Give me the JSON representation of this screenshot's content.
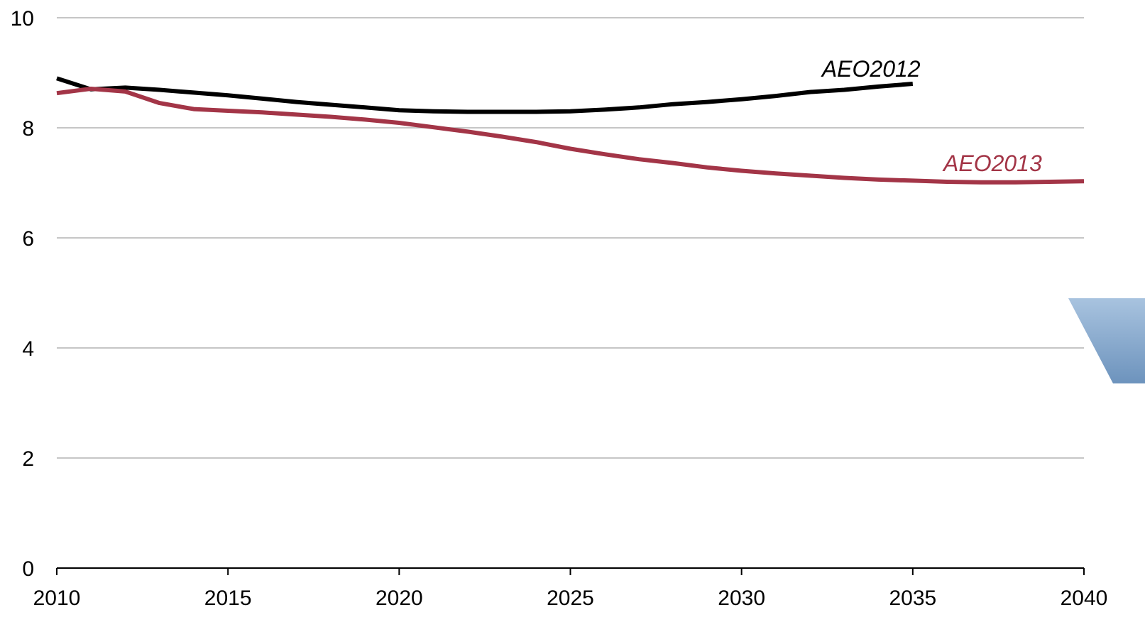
{
  "chart_data": {
    "type": "line",
    "title": "",
    "xlabel": "",
    "ylabel": "",
    "xlim": [
      2010,
      2040
    ],
    "ylim": [
      0,
      10
    ],
    "grid": true,
    "legend": "inline labels at line ends",
    "x_ticks": [
      "2010",
      "2015",
      "2020",
      "2025",
      "2030",
      "2035",
      "2040"
    ],
    "y_ticks": [
      "0",
      "2",
      "4",
      "6",
      "8",
      "10"
    ],
    "gridline_color": "#b3b3b3",
    "series": [
      {
        "name": "AEO2012",
        "color": "#000000",
        "x": [
          2010,
          2011,
          2012,
          2013,
          2014,
          2015,
          2016,
          2017,
          2018,
          2019,
          2020,
          2021,
          2022,
          2023,
          2024,
          2025,
          2026,
          2027,
          2028,
          2029,
          2030,
          2031,
          2032,
          2033,
          2034,
          2035
        ],
        "values": [
          8.9,
          8.7,
          8.73,
          8.69,
          8.64,
          8.59,
          8.53,
          8.47,
          8.42,
          8.37,
          8.32,
          8.3,
          8.29,
          8.29,
          8.29,
          8.3,
          8.33,
          8.37,
          8.43,
          8.47,
          8.52,
          8.58,
          8.65,
          8.69,
          8.75,
          8.8
        ]
      },
      {
        "name": "AEO2013",
        "color": "#a33547",
        "x": [
          2010,
          2011,
          2012,
          2013,
          2014,
          2015,
          2016,
          2017,
          2018,
          2019,
          2020,
          2021,
          2022,
          2023,
          2024,
          2025,
          2026,
          2027,
          2028,
          2029,
          2030,
          2031,
          2032,
          2033,
          2034,
          2035,
          2036,
          2037,
          2038,
          2039,
          2040
        ],
        "values": [
          8.63,
          8.71,
          8.66,
          8.45,
          8.34,
          8.31,
          8.28,
          8.24,
          8.2,
          8.15,
          8.09,
          8.01,
          7.93,
          7.84,
          7.74,
          7.62,
          7.52,
          7.43,
          7.36,
          7.28,
          7.22,
          7.17,
          7.13,
          7.09,
          7.06,
          7.04,
          7.02,
          7.01,
          7.01,
          7.02,
          7.03
        ]
      }
    ]
  },
  "decoration": {
    "corner_shape_color": "#8fb0d2"
  }
}
